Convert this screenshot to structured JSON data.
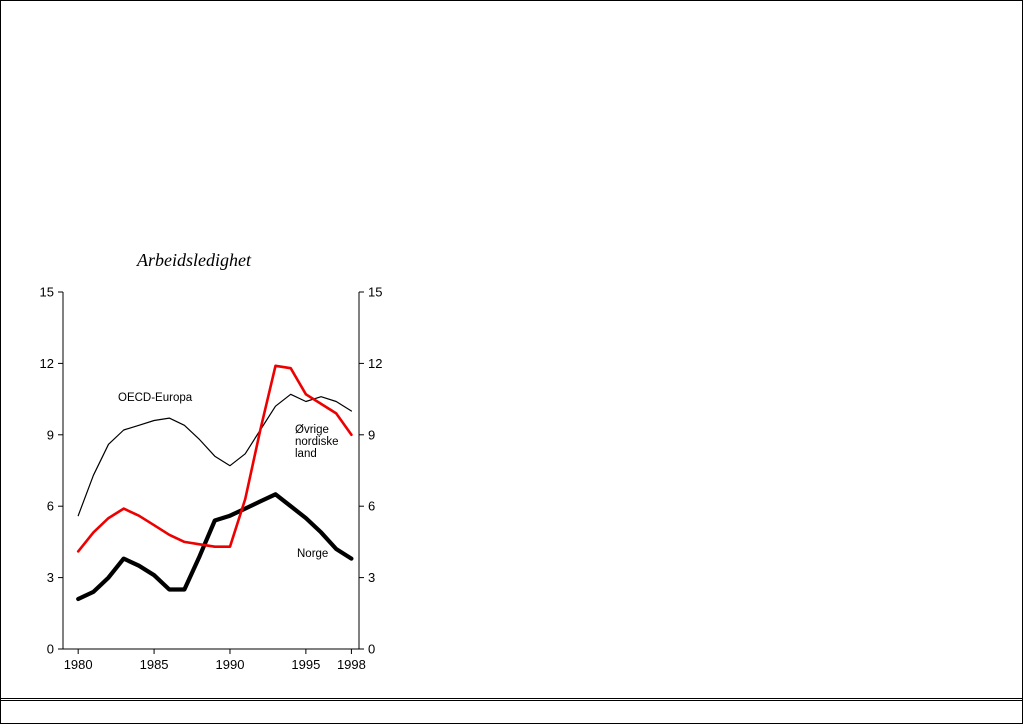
{
  "page": {
    "background": "#ffffff",
    "frame_color": "#000000"
  },
  "chart_data": {
    "type": "line",
    "title": "Arbeidsledighet",
    "xlabel": "",
    "ylabel": "",
    "grid": false,
    "legend_position": "inline-annotations",
    "xlim": [
      1979,
      1998.5
    ],
    "ylim": [
      0,
      15
    ],
    "x_ticks": [
      1980,
      1985,
      1990,
      1995,
      1998
    ],
    "y_ticks": [
      0,
      3,
      6,
      9,
      12,
      15
    ],
    "y_axis_sides": [
      "left",
      "right"
    ],
    "x_years": [
      1980,
      1981,
      1982,
      1983,
      1984,
      1985,
      1986,
      1987,
      1988,
      1989,
      1990,
      1991,
      1992,
      1993,
      1994,
      1995,
      1996,
      1997,
      1998
    ],
    "series": [
      {
        "name": "OECD-Europa",
        "color": "#000000",
        "stroke_width": 1.2,
        "values": [
          5.6,
          7.3,
          8.6,
          9.2,
          9.4,
          9.6,
          9.7,
          9.4,
          8.8,
          8.1,
          7.7,
          8.2,
          9.2,
          10.2,
          10.7,
          10.4,
          10.6,
          10.4,
          10.0
        ]
      },
      {
        "name": "Norge",
        "color": "#000000",
        "stroke_width": 4.2,
        "values": [
          2.1,
          2.4,
          3.0,
          3.8,
          3.5,
          3.1,
          2.5,
          2.5,
          3.9,
          5.4,
          5.6,
          5.9,
          6.2,
          6.5,
          6.0,
          5.5,
          4.9,
          4.2,
          3.8
        ]
      },
      {
        "name": "Øvrige nordiske land",
        "color": "#ee0000",
        "stroke_width": 2.6,
        "values": [
          4.1,
          4.9,
          5.5,
          5.9,
          5.6,
          5.2,
          4.8,
          4.5,
          4.4,
          4.3,
          4.3,
          6.3,
          9.2,
          11.9,
          11.8,
          10.7,
          10.3,
          9.9,
          9.0
        ]
      }
    ]
  }
}
